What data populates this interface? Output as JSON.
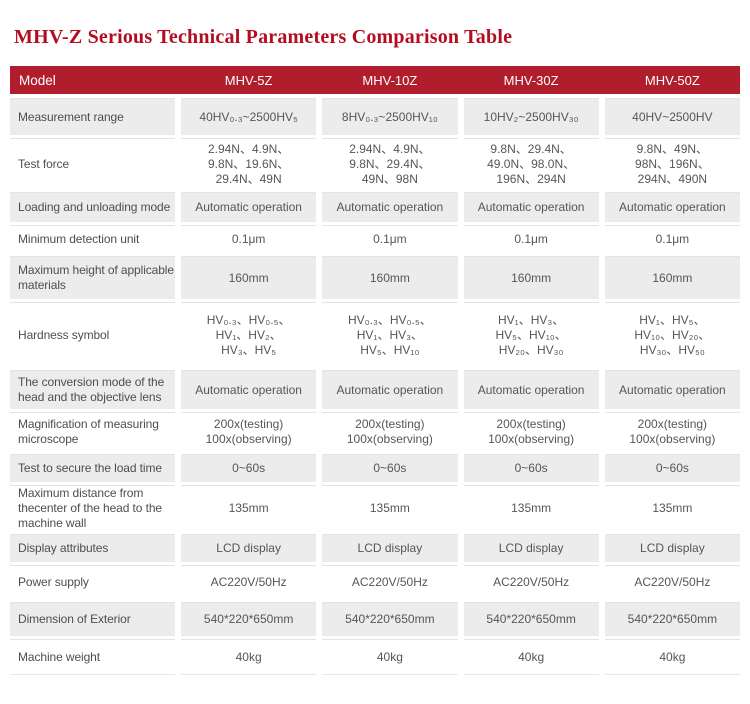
{
  "page": {
    "title": "MHV-Z Serious Technical Parameters Comparison Table"
  },
  "colors": {
    "title_red": "#b40d20",
    "header_bg": "#b01e2e",
    "stripe_gray": "#ececec"
  },
  "table": {
    "header": {
      "label": "Model",
      "models": [
        "MHV-5Z",
        "MHV-10Z",
        "MHV-30Z",
        "MHV-50Z"
      ]
    },
    "rows": [
      {
        "label": "Measurement range",
        "values": [
          "40HV₀.₃~2500HV₅",
          "8HV₀.₃~2500HV₁₀",
          "10HV₂~2500HV₃₀",
          "40HV~2500HV"
        ]
      },
      {
        "label": "Test force",
        "values": [
          [
            "2.94N、4.9N、",
            "9.8N、19.6N、",
            "29.4N、49N"
          ],
          [
            "2.94N、4.9N、",
            "9.8N、29.4N、",
            "49N、98N"
          ],
          [
            "9.8N、29.4N、",
            "49.0N、98.0N、",
            "196N、294N"
          ],
          [
            "9.8N、49N、",
            "98N、196N、",
            "294N、490N"
          ]
        ]
      },
      {
        "label": "Loading and unloading mode",
        "values": [
          "Automatic operation",
          "Automatic operation",
          "Automatic operation",
          "Automatic operation"
        ]
      },
      {
        "label": "Minimum detection unit",
        "values": [
          "0.1μm",
          "0.1μm",
          "0.1μm",
          "0.1μm"
        ]
      },
      {
        "label": "Maximum height of applicable materials",
        "values": [
          "160mm",
          "160mm",
          "160mm",
          "160mm"
        ]
      },
      {
        "label": "Hardness symbol",
        "values": [
          [
            "HV₀.₃、HV₀.₅、",
            "HV₁、HV₂、",
            "HV₃、HV₅"
          ],
          [
            "HV₀.₃、HV₀.₅、",
            "HV₁、HV₃、",
            "HV₅、HV₁₀"
          ],
          [
            "HV₁、HV₃、",
            "HV₅、HV₁₀、",
            "HV₂₀、HV₃₀"
          ],
          [
            "HV₁、HV₅、",
            "HV₁₀、HV₂₀、",
            "HV₃₀、HV₅₀"
          ]
        ]
      },
      {
        "label": "The conversion mode of the head and the objective lens",
        "values": [
          "Automatic operation",
          "Automatic operation",
          "Automatic operation",
          "Automatic operation"
        ]
      },
      {
        "label": "Magnification of measuring microscope",
        "values": [
          [
            "200x(testing)",
            "100x(observing)"
          ],
          [
            "200x(testing)",
            "100x(observing)"
          ],
          [
            "200x(testing)",
            "100x(observing)"
          ],
          [
            "200x(testing)",
            "100x(observing)"
          ]
        ]
      },
      {
        "label": "Test to secure the load time",
        "values": [
          "0~60s",
          "0~60s",
          "0~60s",
          "0~60s"
        ]
      },
      {
        "label": "Maximum distance from thecenter of the head to the machine wall",
        "values": [
          "135mm",
          "135mm",
          "135mm",
          "135mm"
        ]
      },
      {
        "label": "Display attributes",
        "values": [
          "LCD display",
          "LCD display",
          "LCD display",
          "LCD display"
        ]
      },
      {
        "label": "Power supply",
        "values": [
          "AC220V/50Hz",
          "AC220V/50Hz",
          "AC220V/50Hz",
          "AC220V/50Hz"
        ]
      },
      {
        "label": "Dimension of Exterior",
        "values": [
          "540*220*650mm",
          "540*220*650mm",
          "540*220*650mm",
          "540*220*650mm"
        ]
      },
      {
        "label": "Machine weight",
        "values": [
          "40kg",
          "40kg",
          "40kg",
          "40kg"
        ]
      }
    ]
  }
}
